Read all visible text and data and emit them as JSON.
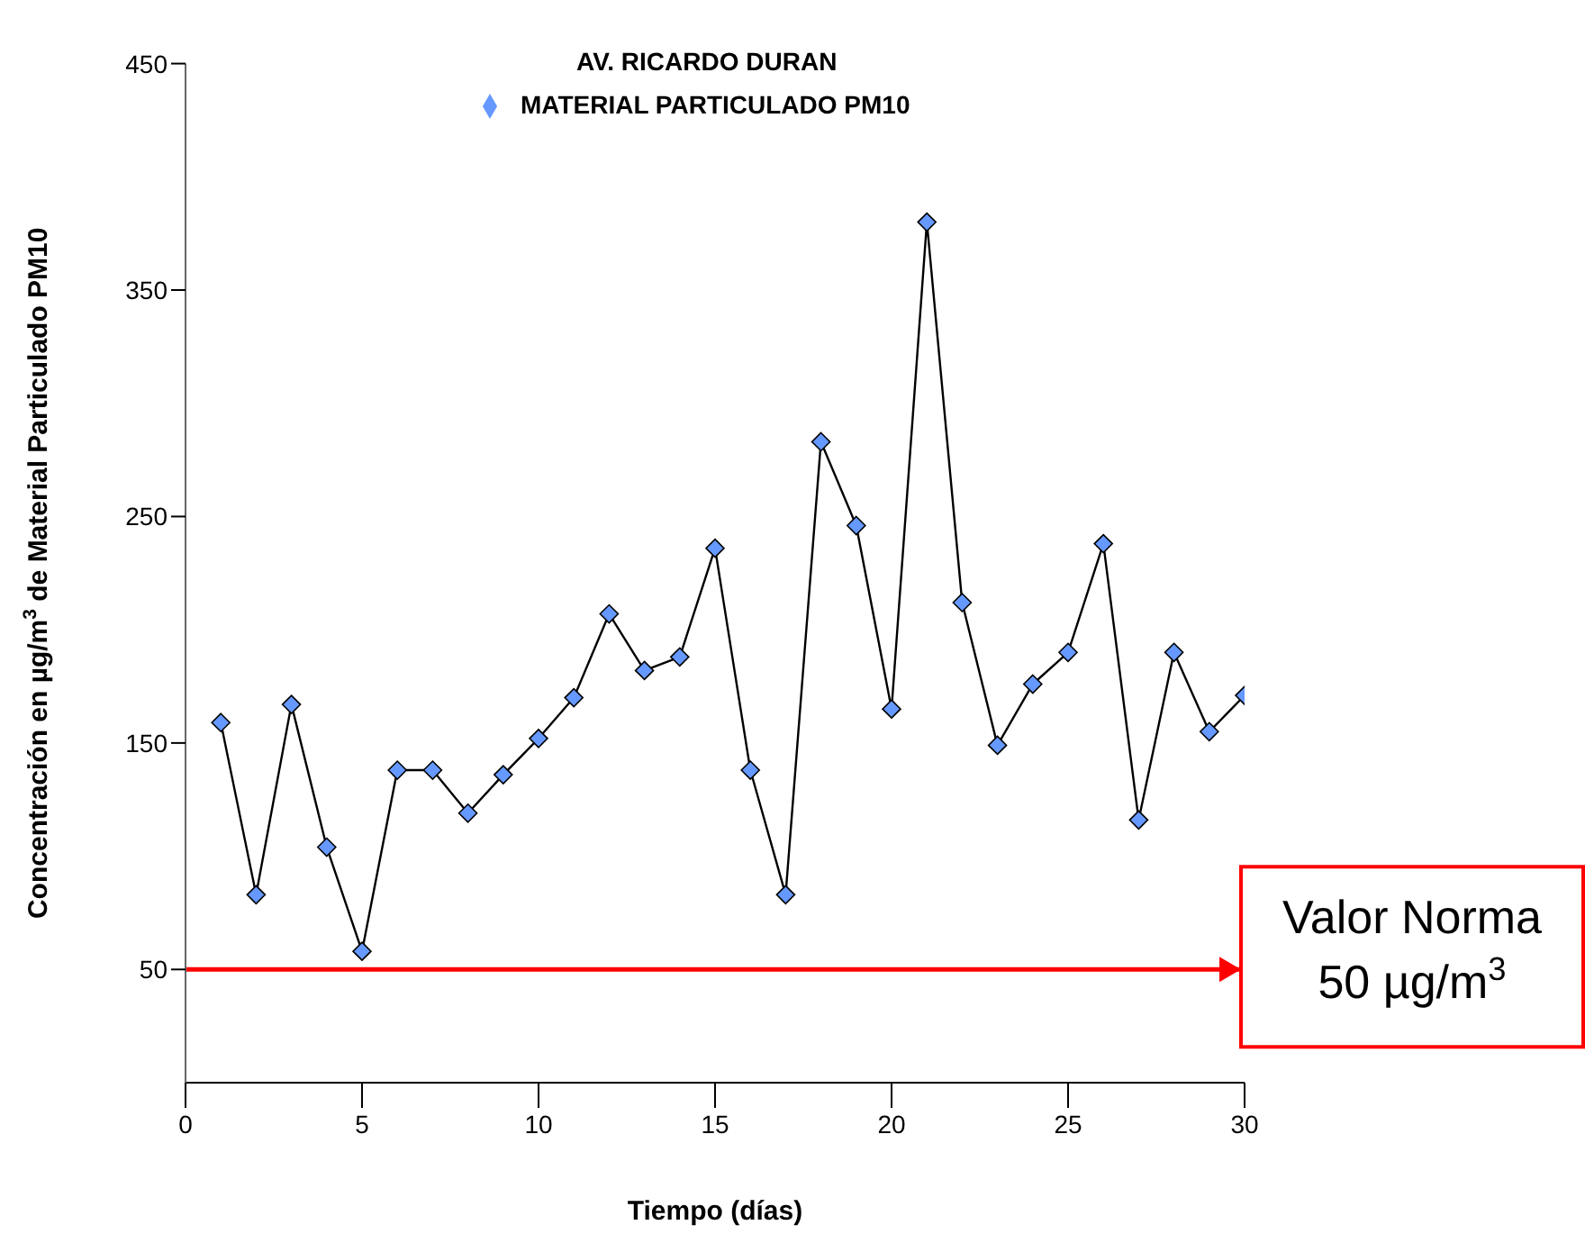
{
  "chart_data": {
    "type": "line",
    "title": "AV. RICARDO DURAN",
    "xlabel": "Tiempo (días)",
    "ylabel": "Concentración en µg/m$^{3}$ de Material Particulado PM10",
    "x": [
      1,
      2,
      3,
      4,
      5,
      6,
      7,
      8,
      9,
      10,
      11,
      12,
      13,
      14,
      15,
      16,
      17,
      18,
      19,
      20,
      21,
      22,
      23,
      24,
      25,
      26,
      27,
      28,
      29,
      30
    ],
    "series": [
      {
        "name": "MATERIAL PARTICULADO PM10",
        "color": "#6699ff",
        "values": [
          159,
          83,
          167,
          104,
          58,
          138,
          138,
          119,
          136,
          152,
          170,
          207,
          182,
          188,
          236,
          138,
          83,
          283,
          246,
          165,
          380,
          212,
          149,
          176,
          190,
          238,
          116,
          190,
          155,
          171
        ]
      }
    ],
    "xlim": [
      0,
      30
    ],
    "xticks": [
      0,
      5,
      10,
      15,
      20,
      25,
      30
    ],
    "ylim": [
      0,
      450
    ],
    "yticks": [
      50,
      150,
      250,
      350,
      450
    ],
    "ref_lines": [
      {
        "axis": "y",
        "value": 50,
        "label": "Valor Norma\n50 µg/m$^{3}$",
        "color": "#ff0000"
      }
    ],
    "grid": false,
    "legend": "top",
    "marker": "diamond",
    "line_style": "solid"
  }
}
